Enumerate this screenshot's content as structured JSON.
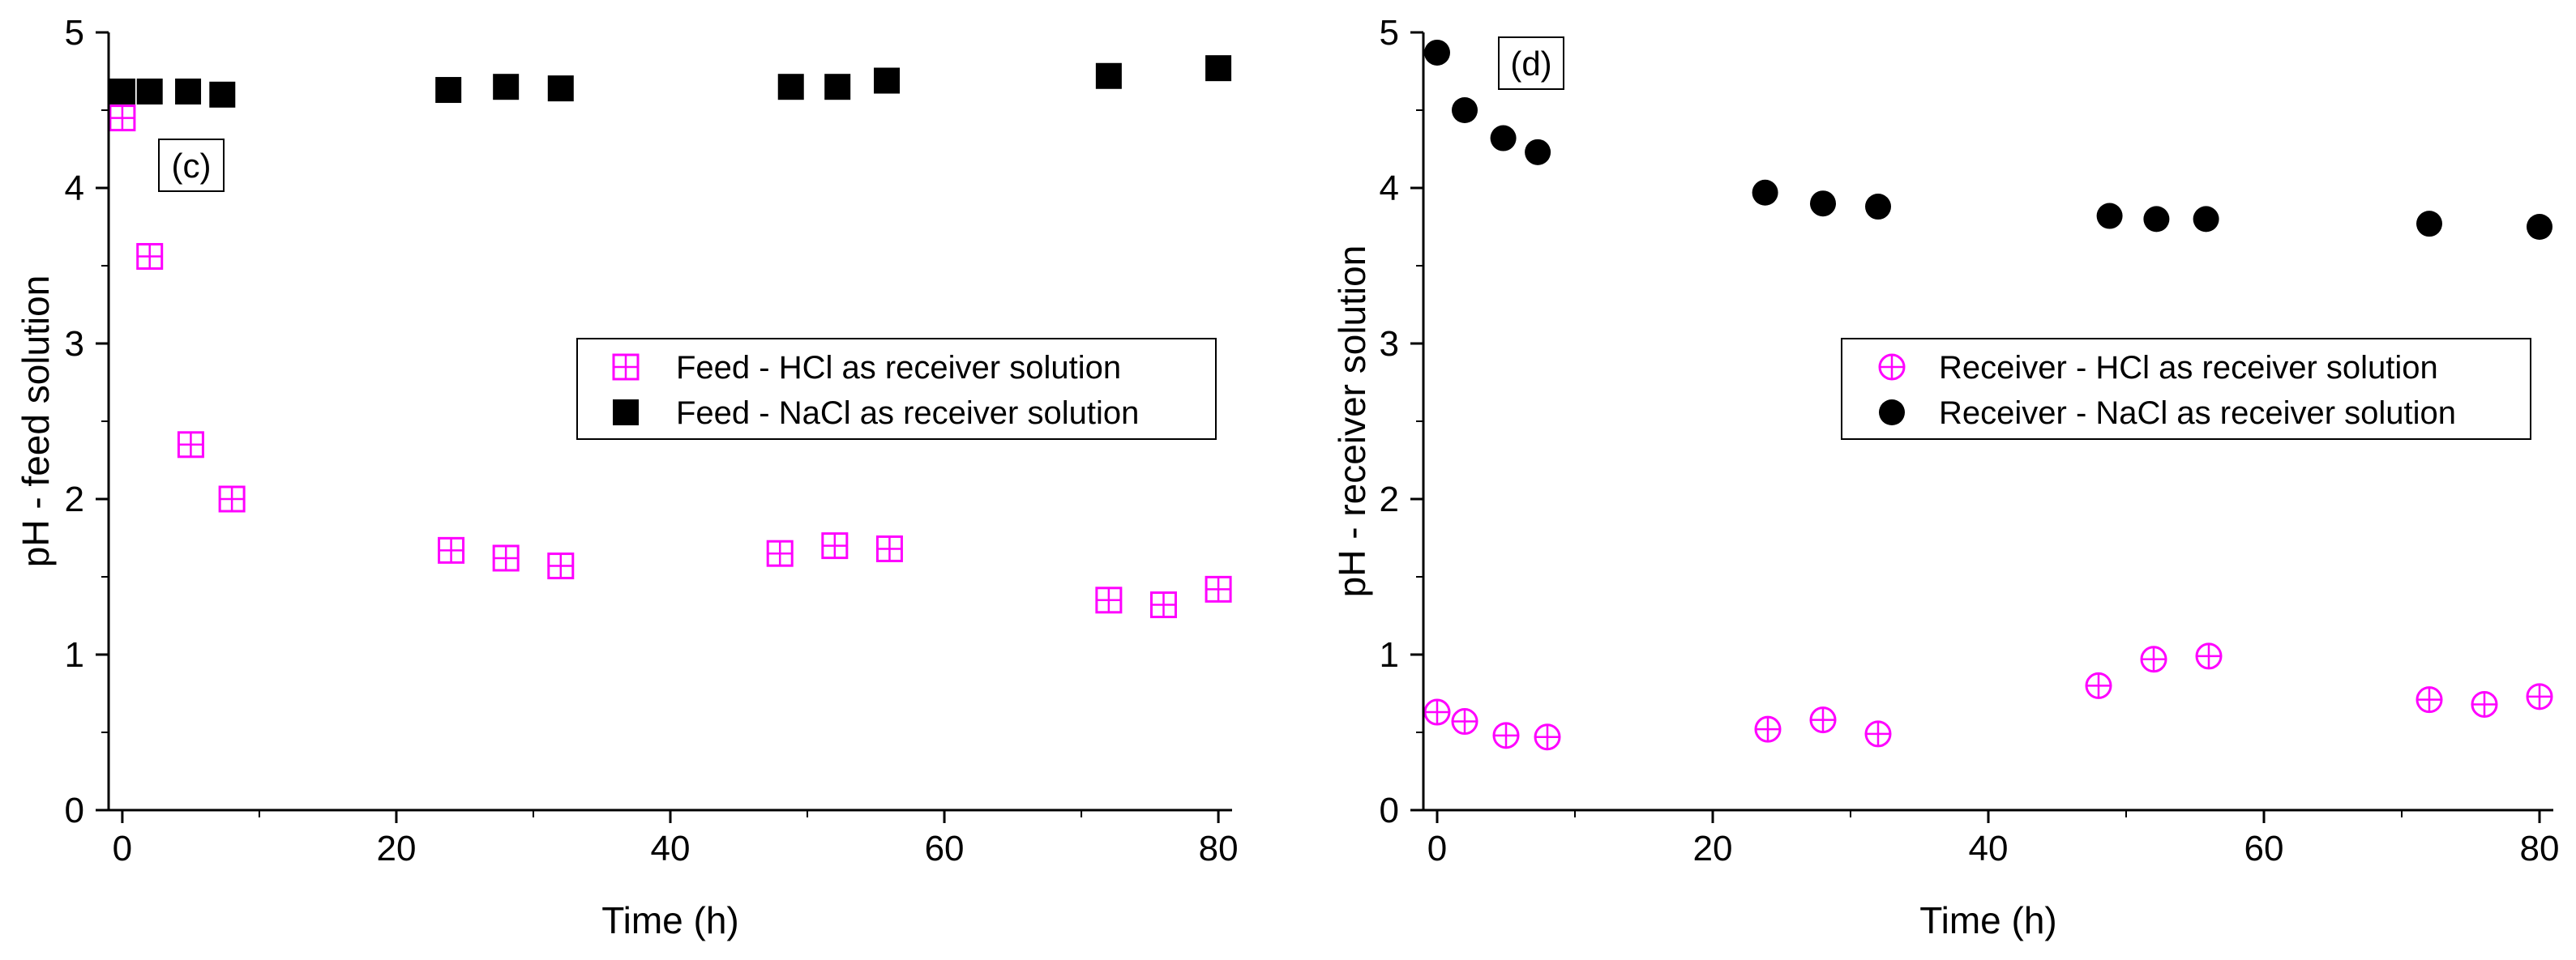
{
  "colors": {
    "magenta": "#FF00FF",
    "black": "#000000",
    "axis": "#000000",
    "background": "#FFFFFF"
  },
  "chart_data": [
    {
      "panel": "(c)",
      "type": "scatter",
      "title": "",
      "xlabel": "Time (h)",
      "ylabel": "pH - feed solution",
      "xlim": [
        -1,
        81
      ],
      "ylim": [
        0,
        5
      ],
      "xticks": [
        0,
        20,
        40,
        60,
        80
      ],
      "yticks": [
        0,
        1,
        2,
        3,
        4,
        5
      ],
      "legend_position": "center-right",
      "series": [
        {
          "name": "Feed - HCl as receiver solution",
          "marker": "square-plus",
          "color": "#FF00FF",
          "points": [
            [
              0,
              4.45
            ],
            [
              2,
              3.56
            ],
            [
              5,
              2.35
            ],
            [
              8,
              2.0
            ],
            [
              24,
              1.67
            ],
            [
              28,
              1.62
            ],
            [
              32,
              1.57
            ],
            [
              48,
              1.65
            ],
            [
              52,
              1.7
            ],
            [
              56,
              1.68
            ],
            [
              72,
              1.35
            ],
            [
              76,
              1.32
            ],
            [
              80,
              1.42
            ]
          ]
        },
        {
          "name": "Feed - NaCl as receiver solution",
          "marker": "square",
          "color": "#000000",
          "points": [
            [
              0,
              4.62
            ],
            [
              2,
              4.62
            ],
            [
              4.8,
              4.62
            ],
            [
              7.3,
              4.6
            ],
            [
              23.8,
              4.63
            ],
            [
              28,
              4.65
            ],
            [
              32,
              4.64
            ],
            [
              48.8,
              4.65
            ],
            [
              52.2,
              4.65
            ],
            [
              55.8,
              4.69
            ],
            [
              72,
              4.72
            ],
            [
              80,
              4.77
            ]
          ]
        }
      ]
    },
    {
      "panel": "(d)",
      "type": "scatter",
      "title": "",
      "xlabel": "Time (h)",
      "ylabel": "pH - receiver solution",
      "xlim": [
        -1,
        81
      ],
      "ylim": [
        0,
        5
      ],
      "xticks": [
        0,
        20,
        40,
        60,
        80
      ],
      "yticks": [
        0,
        1,
        2,
        3,
        4,
        5
      ],
      "legend_position": "center-right",
      "series": [
        {
          "name": "Receiver - HCl as receiver solution",
          "marker": "circle-plus",
          "color": "#FF00FF",
          "points": [
            [
              0,
              0.63
            ],
            [
              2,
              0.57
            ],
            [
              5,
              0.48
            ],
            [
              8,
              0.47
            ],
            [
              24,
              0.52
            ],
            [
              28,
              0.58
            ],
            [
              32,
              0.49
            ],
            [
              48,
              0.8
            ],
            [
              52,
              0.97
            ],
            [
              56,
              0.99
            ],
            [
              72,
              0.71
            ],
            [
              76,
              0.68
            ],
            [
              80,
              0.73
            ]
          ]
        },
        {
          "name": "Receiver - NaCl as receiver solution",
          "marker": "circle",
          "color": "#000000",
          "points": [
            [
              0,
              4.87
            ],
            [
              2,
              4.5
            ],
            [
              4.8,
              4.32
            ],
            [
              7.3,
              4.23
            ],
            [
              23.8,
              3.97
            ],
            [
              28,
              3.9
            ],
            [
              32,
              3.88
            ],
            [
              48.8,
              3.82
            ],
            [
              52.2,
              3.8
            ],
            [
              55.8,
              3.8
            ],
            [
              72,
              3.77
            ],
            [
              80,
              3.75
            ]
          ]
        }
      ]
    }
  ]
}
